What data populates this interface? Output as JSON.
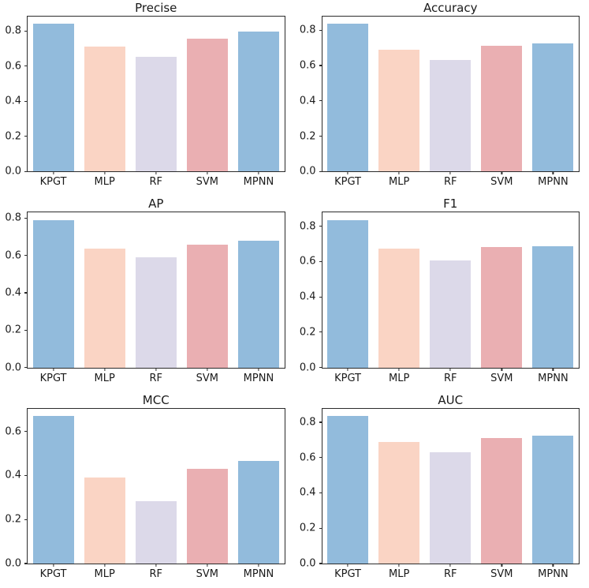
{
  "figure": {
    "background_color": "#ffffff",
    "spine_color": "#2b2b2b",
    "text_color": "#1a1a1a",
    "grid": false,
    "legend": false
  },
  "categories": [
    "KPGT",
    "MLP",
    "RF",
    "SVM",
    "MPNN"
  ],
  "bar_colors": [
    "#92bbdc",
    "#fad4c4",
    "#dcd9e9",
    "#eaafb2",
    "#92bbdc"
  ],
  "chart_data": [
    {
      "type": "bar",
      "title": "Precise",
      "xlabel": "",
      "ylabel": "",
      "categories": [
        "KPGT",
        "MLP",
        "RF",
        "SVM",
        "MPNN"
      ],
      "values": [
        0.84,
        0.71,
        0.655,
        0.755,
        0.795
      ],
      "yticks": [
        0.0,
        0.2,
        0.4,
        0.6,
        0.8
      ],
      "ylim": [
        0,
        0.882
      ]
    },
    {
      "type": "bar",
      "title": "Accuracy",
      "xlabel": "",
      "ylabel": "",
      "categories": [
        "KPGT",
        "MLP",
        "RF",
        "SVM",
        "MPNN"
      ],
      "values": [
        0.835,
        0.69,
        0.63,
        0.71,
        0.725
      ],
      "yticks": [
        0.0,
        0.2,
        0.4,
        0.6,
        0.8
      ],
      "ylim": [
        0,
        0.877
      ]
    },
    {
      "type": "bar",
      "title": "AP",
      "xlabel": "",
      "ylabel": "",
      "categories": [
        "KPGT",
        "MLP",
        "RF",
        "SVM",
        "MPNN"
      ],
      "values": [
        0.79,
        0.635,
        0.59,
        0.66,
        0.68
      ],
      "yticks": [
        0.0,
        0.2,
        0.4,
        0.6,
        0.8
      ],
      "ylim": [
        0,
        0.83
      ]
    },
    {
      "type": "bar",
      "title": "F1",
      "xlabel": "",
      "ylabel": "",
      "categories": [
        "KPGT",
        "MLP",
        "RF",
        "SVM",
        "MPNN"
      ],
      "values": [
        0.835,
        0.675,
        0.605,
        0.684,
        0.688
      ],
      "yticks": [
        0.0,
        0.2,
        0.4,
        0.6,
        0.8
      ],
      "ylim": [
        0,
        0.877
      ]
    },
    {
      "type": "bar",
      "title": "MCC",
      "xlabel": "",
      "ylabel": "",
      "categories": [
        "KPGT",
        "MLP",
        "RF",
        "SVM",
        "MPNN"
      ],
      "values": [
        0.67,
        0.39,
        0.285,
        0.43,
        0.465
      ],
      "yticks": [
        0.0,
        0.2,
        0.4,
        0.6
      ],
      "ylim": [
        0,
        0.704
      ]
    },
    {
      "type": "bar",
      "title": "AUC",
      "xlabel": "",
      "ylabel": "",
      "categories": [
        "KPGT",
        "MLP",
        "RF",
        "SVM",
        "MPNN"
      ],
      "values": [
        0.835,
        0.69,
        0.63,
        0.71,
        0.725
      ],
      "yticks": [
        0.0,
        0.2,
        0.4,
        0.6,
        0.8
      ],
      "ylim": [
        0,
        0.877
      ]
    }
  ]
}
